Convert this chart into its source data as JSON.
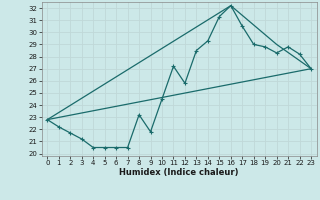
{
  "xlabel": "Humidex (Indice chaleur)",
  "ylabel": "",
  "bg_color": "#cce8e8",
  "grid_color": "#b8d8d8",
  "line_color": "#1a6b6b",
  "xlim": [
    -0.5,
    23.5
  ],
  "ylim": [
    19.8,
    32.5
  ],
  "xticks": [
    0,
    1,
    2,
    3,
    4,
    5,
    6,
    7,
    8,
    9,
    10,
    11,
    12,
    13,
    14,
    15,
    16,
    17,
    18,
    19,
    20,
    21,
    22,
    23
  ],
  "yticks": [
    20,
    21,
    22,
    23,
    24,
    25,
    26,
    27,
    28,
    29,
    30,
    31,
    32
  ],
  "line1_x": [
    0,
    1,
    2,
    3,
    4,
    5,
    6,
    7,
    8,
    9,
    10,
    11,
    12,
    13,
    14,
    15,
    16,
    17,
    18,
    19,
    20,
    21,
    22,
    23
  ],
  "line1_y": [
    22.8,
    22.2,
    21.7,
    21.2,
    20.5,
    20.5,
    20.5,
    20.5,
    23.2,
    21.8,
    24.5,
    27.2,
    25.8,
    28.5,
    29.3,
    31.3,
    32.2,
    30.5,
    29.0,
    28.8,
    28.3,
    28.8,
    28.2,
    27.0
  ],
  "line2_x": [
    0,
    16,
    20,
    23
  ],
  "line2_y": [
    22.8,
    32.2,
    29.0,
    27.0
  ],
  "line3_x": [
    0,
    23
  ],
  "line3_y": [
    22.8,
    27.0
  ]
}
